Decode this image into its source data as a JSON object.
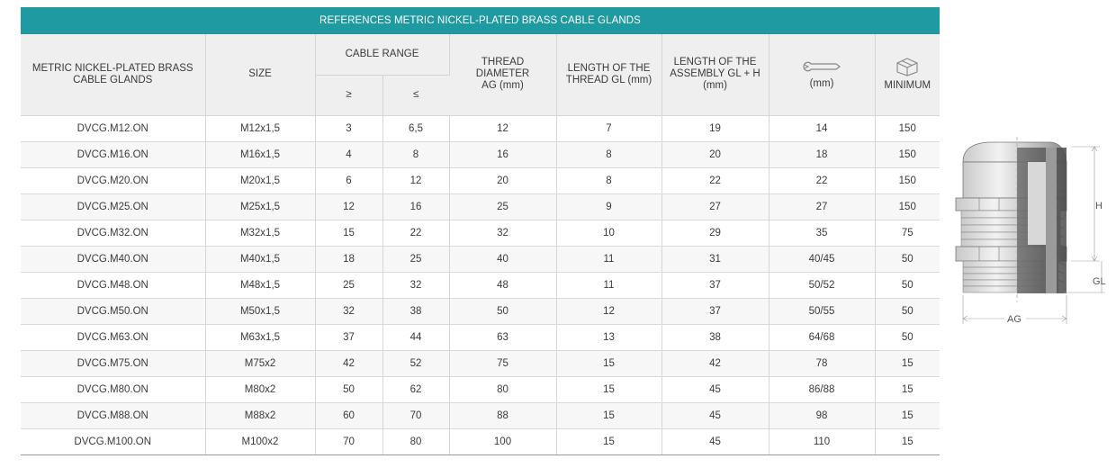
{
  "table": {
    "title": "REFERENCES METRIC NICKEL-PLATED BRASS CABLE GLANDS",
    "headers": {
      "reference": "METRIC NICKEL-PLATED BRASS CABLE GLANDS",
      "size": "SIZE",
      "cable_range": "CABLE RANGE",
      "cable_min": "≥",
      "cable_max": "≤",
      "thread_diameter": "THREAD DIAMETER AG (mm)",
      "thread_length": "LENGTH OF THE THREAD GL (mm)",
      "assembly_length": "LENGTH OF THE ASSEMBLY GL + H (mm)",
      "wrench_unit": "(mm)",
      "minimum": "MINIMUM"
    },
    "icons": {
      "wrench": "wrench-icon",
      "box": "box-icon"
    },
    "rows": [
      {
        "ref": "DVCG.M12.ON",
        "size": "M12x1,5",
        "min": "3",
        "max": "6,5",
        "ag": "12",
        "gl": "7",
        "glh": "19",
        "wrench": "14",
        "minimum": "150"
      },
      {
        "ref": "DVCG.M16.ON",
        "size": "M16x1,5",
        "min": "4",
        "max": "8",
        "ag": "16",
        "gl": "8",
        "glh": "20",
        "wrench": "18",
        "minimum": "150"
      },
      {
        "ref": "DVCG.M20.ON",
        "size": "M20x1,5",
        "min": "6",
        "max": "12",
        "ag": "20",
        "gl": "8",
        "glh": "22",
        "wrench": "22",
        "minimum": "150"
      },
      {
        "ref": "DVCG.M25.ON",
        "size": "M25x1,5",
        "min": "12",
        "max": "16",
        "ag": "25",
        "gl": "9",
        "glh": "27",
        "wrench": "27",
        "minimum": "150"
      },
      {
        "ref": "DVCG.M32.ON",
        "size": "M32x1,5",
        "min": "15",
        "max": "22",
        "ag": "32",
        "gl": "10",
        "glh": "29",
        "wrench": "35",
        "minimum": "75"
      },
      {
        "ref": "DVCG.M40.ON",
        "size": "M40x1,5",
        "min": "18",
        "max": "25",
        "ag": "40",
        "gl": "11",
        "glh": "31",
        "wrench": "40/45",
        "minimum": "50"
      },
      {
        "ref": "DVCG.M48.ON",
        "size": "M48x1,5",
        "min": "25",
        "max": "32",
        "ag": "48",
        "gl": "11",
        "glh": "37",
        "wrench": "50/52",
        "minimum": "50"
      },
      {
        "ref": "DVCG.M50.ON",
        "size": "M50x1,5",
        "min": "32",
        "max": "38",
        "ag": "50",
        "gl": "12",
        "glh": "37",
        "wrench": "50/55",
        "minimum": "50"
      },
      {
        "ref": "DVCG.M63.ON",
        "size": "M63x1,5",
        "min": "37",
        "max": "44",
        "ag": "63",
        "gl": "13",
        "glh": "38",
        "wrench": "64/68",
        "minimum": "50"
      },
      {
        "ref": "DVCG.M75.ON",
        "size": "M75x2",
        "min": "42",
        "max": "52",
        "ag": "75",
        "gl": "15",
        "glh": "42",
        "wrench": "78",
        "minimum": "15"
      },
      {
        "ref": "DVCG.M80.ON",
        "size": "M80x2",
        "min": "50",
        "max": "62",
        "ag": "80",
        "gl": "15",
        "glh": "45",
        "wrench": "86/88",
        "minimum": "15"
      },
      {
        "ref": "DVCG.M88.ON",
        "size": "M88x2",
        "min": "60",
        "max": "70",
        "ag": "88",
        "gl": "15",
        "glh": "45",
        "wrench": "98",
        "minimum": "15"
      },
      {
        "ref": "DVCG.M100.ON",
        "size": "M100x2",
        "min": "70",
        "max": "80",
        "ag": "100",
        "gl": "15",
        "glh": "45",
        "wrench": "110",
        "minimum": "15"
      }
    ]
  },
  "diagram": {
    "labels": {
      "h": "H",
      "gl": "GL",
      "ag": "AG"
    }
  },
  "colors": {
    "title_bar": "#1e9aa0",
    "header_bg": "#efefef",
    "row_alt": "#f7f7f7"
  }
}
